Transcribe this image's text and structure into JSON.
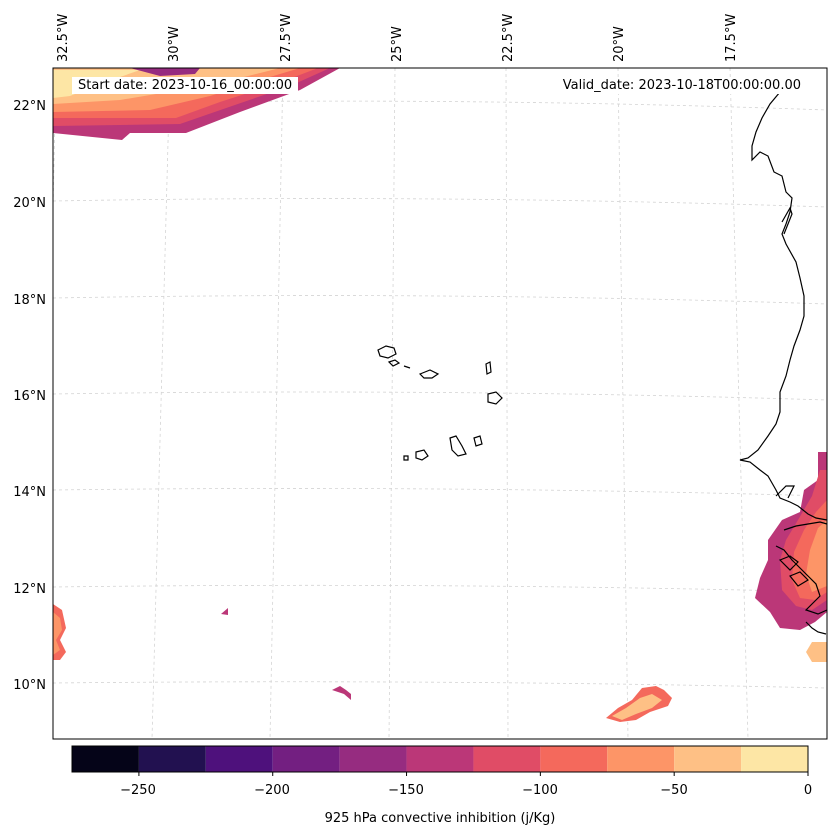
{
  "map": {
    "start_date": "Start date: 2023-10-16_00:00:00",
    "valid_date": "Valid_date: 2023-10-18T00:00:00.00",
    "longitude_labels": [
      "32.5°W",
      "30°W",
      "27.5°W",
      "25°W",
      "22.5°W",
      "20°W",
      "17.5°W"
    ],
    "latitude_labels": [
      "22°N",
      "20°N",
      "18°N",
      "16°N",
      "14°N",
      "12°N",
      "10°N"
    ],
    "gridlines": true,
    "coastline_color": "#000000",
    "gridline_color": "#cccccc"
  },
  "colorbar": {
    "label": "925 hPa convective inhibition (j/Kg)",
    "tick_labels": [
      "−250",
      "−200",
      "−150",
      "−100",
      "−50",
      "0"
    ],
    "levels": [
      -275,
      -250,
      -225,
      -200,
      -175,
      -150,
      -125,
      -100,
      -75,
      -50,
      -25,
      0
    ],
    "colors": [
      "#050418",
      "#221150",
      "#4e117c",
      "#731f81",
      "#962c80",
      "#bb3778",
      "#e04c66",
      "#f4695c",
      "#fd9567",
      "#fec085",
      "#fde6a5"
    ]
  }
}
